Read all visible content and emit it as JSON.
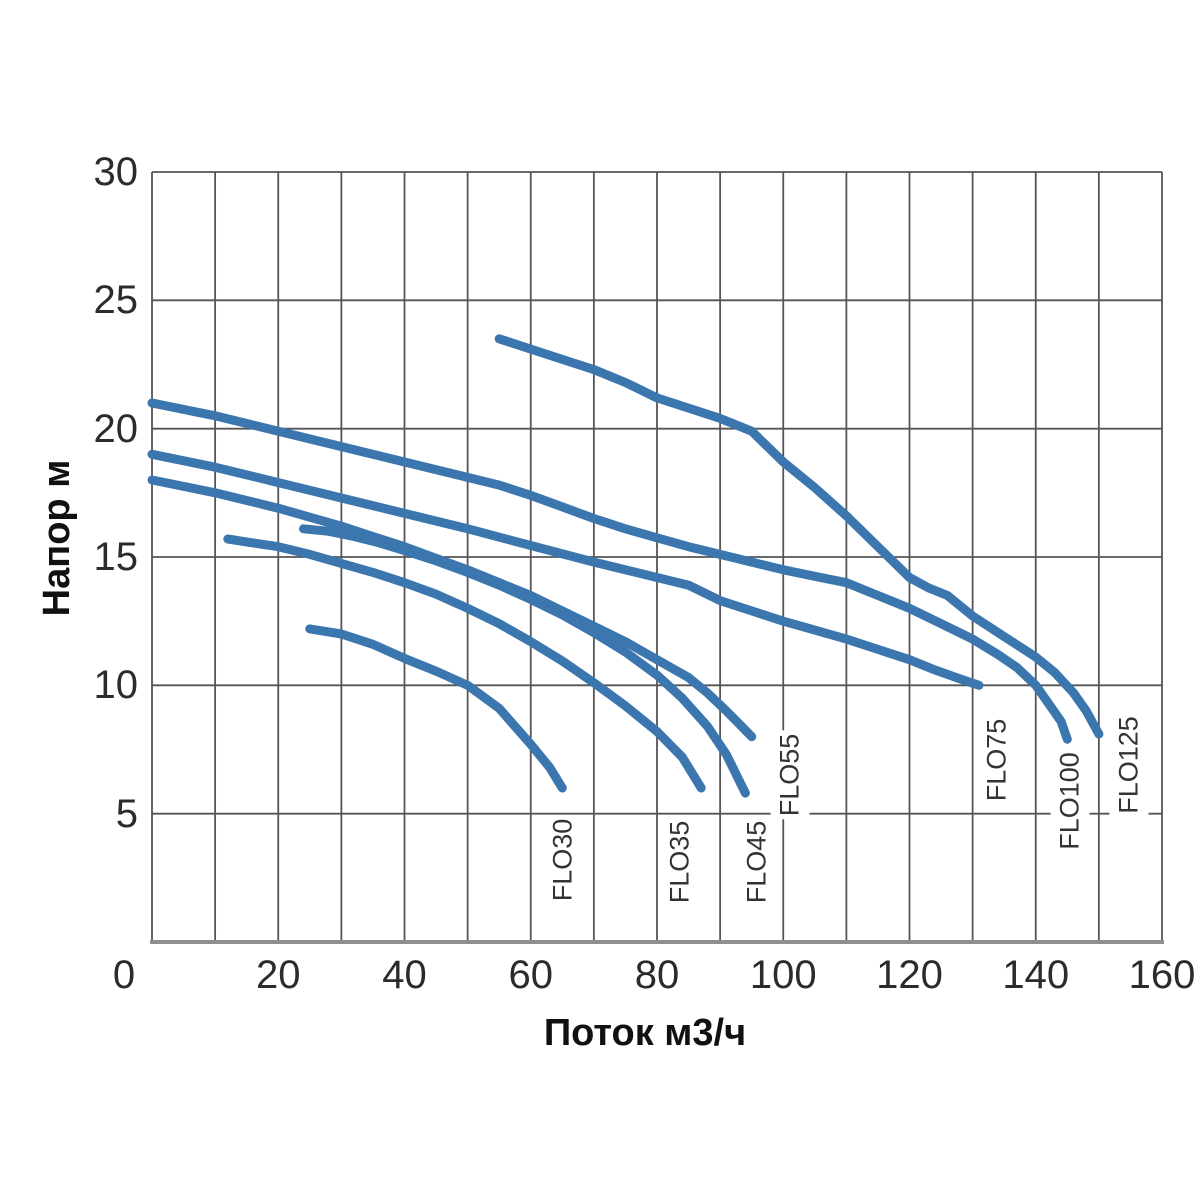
{
  "chart_data": {
    "type": "line",
    "title": "",
    "xlabel": "Поток м3/ч",
    "ylabel": "Напор м",
    "xlim": [
      0,
      160
    ],
    "ylim": [
      0,
      30
    ],
    "x_ticks": [
      0,
      20,
      40,
      60,
      80,
      100,
      120,
      140,
      160
    ],
    "y_ticks": [
      30,
      25,
      20,
      15,
      10,
      5
    ],
    "x_grid_step": 10,
    "y_grid_step": 5,
    "grid": "on",
    "legend_position": "labels-on-chart",
    "curve_color": "#3b77ae",
    "grid_color": "#555555",
    "baseline_color": "#8f8f8f",
    "series": [
      {
        "name": "FLO30",
        "label_at": [
          65.1,
          3.2
        ],
        "points": [
          [
            25,
            12.2
          ],
          [
            30,
            12.0
          ],
          [
            35,
            11.6
          ],
          [
            40,
            11.05
          ],
          [
            45,
            10.55
          ],
          [
            50,
            10.0
          ],
          [
            55,
            9.1
          ],
          [
            60,
            7.7
          ],
          [
            63,
            6.8
          ],
          [
            65,
            6.0
          ]
        ]
      },
      {
        "name": "FLO35",
        "label_at": [
          83.7,
          3.1
        ],
        "points": [
          [
            12,
            15.7
          ],
          [
            16,
            15.55
          ],
          [
            20,
            15.4
          ],
          [
            25,
            15.1
          ],
          [
            30,
            14.75
          ],
          [
            35,
            14.4
          ],
          [
            40,
            14.0
          ],
          [
            45,
            13.55
          ],
          [
            50,
            13.0
          ],
          [
            55,
            12.4
          ],
          [
            60,
            11.7
          ],
          [
            65,
            10.95
          ],
          [
            70,
            10.1
          ],
          [
            75,
            9.2
          ],
          [
            80,
            8.2
          ],
          [
            84,
            7.2
          ],
          [
            87,
            6.0
          ]
        ]
      },
      {
        "name": "FLO45",
        "label_at": [
          95.9,
          3.1
        ],
        "points": [
          [
            24,
            16.1
          ],
          [
            28,
            16.0
          ],
          [
            32,
            15.8
          ],
          [
            36,
            15.55
          ],
          [
            40,
            15.25
          ],
          [
            45,
            14.85
          ],
          [
            50,
            14.4
          ],
          [
            55,
            13.9
          ],
          [
            60,
            13.35
          ],
          [
            65,
            12.75
          ],
          [
            70,
            12.05
          ],
          [
            75,
            11.3
          ],
          [
            80,
            10.4
          ],
          [
            84,
            9.5
          ],
          [
            88,
            8.4
          ],
          [
            91,
            7.3
          ],
          [
            94,
            5.8
          ]
        ]
      },
      {
        "name": "FLO55",
        "label_at": [
          101.1,
          6.5
        ],
        "points": [
          [
            0,
            18.0
          ],
          [
            5,
            17.75
          ],
          [
            10,
            17.5
          ],
          [
            15,
            17.2
          ],
          [
            20,
            16.9
          ],
          [
            25,
            16.55
          ],
          [
            30,
            16.2
          ],
          [
            35,
            15.8
          ],
          [
            40,
            15.4
          ],
          [
            45,
            14.95
          ],
          [
            50,
            14.5
          ],
          [
            55,
            14.0
          ],
          [
            60,
            13.5
          ],
          [
            65,
            12.9
          ],
          [
            70,
            12.3
          ],
          [
            75,
            11.7
          ],
          [
            80,
            11.0
          ],
          [
            85,
            10.3
          ],
          [
            88,
            9.7
          ],
          [
            91,
            9.0
          ],
          [
            93,
            8.5
          ],
          [
            95,
            8.0
          ]
        ]
      },
      {
        "name": "FLO75",
        "label_at": [
          133.9,
          7.1
        ],
        "points": [
          [
            0,
            19.0
          ],
          [
            10,
            18.5
          ],
          [
            20,
            17.9
          ],
          [
            30,
            17.3
          ],
          [
            40,
            16.7
          ],
          [
            50,
            16.1
          ],
          [
            60,
            15.45
          ],
          [
            70,
            14.8
          ],
          [
            80,
            14.2
          ],
          [
            85,
            13.9
          ],
          [
            90,
            13.3
          ],
          [
            95,
            12.9
          ],
          [
            100,
            12.5
          ],
          [
            105,
            12.15
          ],
          [
            110,
            11.8
          ],
          [
            115,
            11.4
          ],
          [
            120,
            11.0
          ],
          [
            124,
            10.6
          ],
          [
            128,
            10.25
          ],
          [
            131,
            10.0
          ]
        ]
      },
      {
        "name": "FLO100",
        "label_at": [
          145.5,
          5.5
        ],
        "points": [
          [
            0,
            21.0
          ],
          [
            10,
            20.5
          ],
          [
            20,
            19.9
          ],
          [
            30,
            19.3
          ],
          [
            40,
            18.7
          ],
          [
            50,
            18.1
          ],
          [
            55,
            17.8
          ],
          [
            60,
            17.4
          ],
          [
            65,
            16.95
          ],
          [
            70,
            16.5
          ],
          [
            75,
            16.1
          ],
          [
            80,
            15.75
          ],
          [
            85,
            15.4
          ],
          [
            90,
            15.1
          ],
          [
            95,
            14.8
          ],
          [
            100,
            14.5
          ],
          [
            105,
            14.25
          ],
          [
            110,
            14.0
          ],
          [
            115,
            13.5
          ],
          [
            120,
            13.0
          ],
          [
            125,
            12.4
          ],
          [
            130,
            11.8
          ],
          [
            134,
            11.2
          ],
          [
            137,
            10.7
          ],
          [
            140,
            10.0
          ],
          [
            142,
            9.3
          ],
          [
            144,
            8.6
          ],
          [
            145,
            7.9
          ]
        ]
      },
      {
        "name": "FLO125",
        "label_at": [
          154.7,
          6.9
        ],
        "points": [
          [
            55,
            23.5
          ],
          [
            60,
            23.1
          ],
          [
            65,
            22.7
          ],
          [
            70,
            22.3
          ],
          [
            75,
            21.8
          ],
          [
            80,
            21.2
          ],
          [
            85,
            20.8
          ],
          [
            90,
            20.4
          ],
          [
            95,
            19.9
          ],
          [
            100,
            18.7
          ],
          [
            105,
            17.7
          ],
          [
            110,
            16.6
          ],
          [
            115,
            15.4
          ],
          [
            120,
            14.2
          ],
          [
            123,
            13.8
          ],
          [
            126,
            13.5
          ],
          [
            130,
            12.7
          ],
          [
            135,
            11.9
          ],
          [
            140,
            11.1
          ],
          [
            143,
            10.5
          ],
          [
            146,
            9.7
          ],
          [
            148,
            9.0
          ],
          [
            150,
            8.1
          ]
        ]
      }
    ]
  }
}
